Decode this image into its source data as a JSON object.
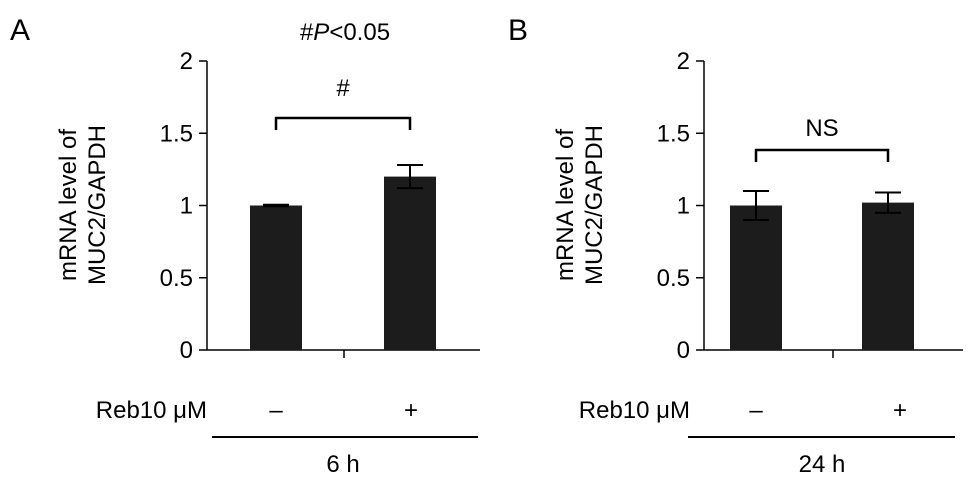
{
  "footnote": {
    "symbol": "#",
    "stat": "P",
    "rest": "<0.05"
  },
  "chart_data": [
    {
      "type": "bar",
      "panel_label": "A",
      "ylabel_lines": [
        "mRNA level of",
        "MUC2/GAPDH"
      ],
      "ylim": [
        0,
        2
      ],
      "yticks": [
        "0",
        "0.5",
        "1",
        "1.5",
        "2"
      ],
      "ytick_values": [
        0,
        0.5,
        1,
        1.5,
        2
      ],
      "categories": [
        "–",
        "+"
      ],
      "values": [
        1.0,
        1.2
      ],
      "errors": [
        0.005,
        0.08
      ],
      "row_label": "Reb10 μM",
      "group_label": "6 h",
      "significance": "#",
      "bar_color": "#1c1c1c",
      "grid": false
    },
    {
      "type": "bar",
      "panel_label": "B",
      "ylabel_lines": [
        "mRNA level of",
        "MUC2/GAPDH"
      ],
      "ylim": [
        0,
        2
      ],
      "yticks": [
        "0",
        "0.5",
        "1",
        "1.5",
        "2"
      ],
      "ytick_values": [
        0,
        0.5,
        1,
        1.5,
        2
      ],
      "categories": [
        "–",
        "+"
      ],
      "values": [
        1.0,
        1.02
      ],
      "errors": [
        0.1,
        0.07
      ],
      "row_label": "Reb10 μM",
      "group_label": "24 h",
      "significance": "NS",
      "bar_color": "#1c1c1c",
      "grid": false
    }
  ]
}
